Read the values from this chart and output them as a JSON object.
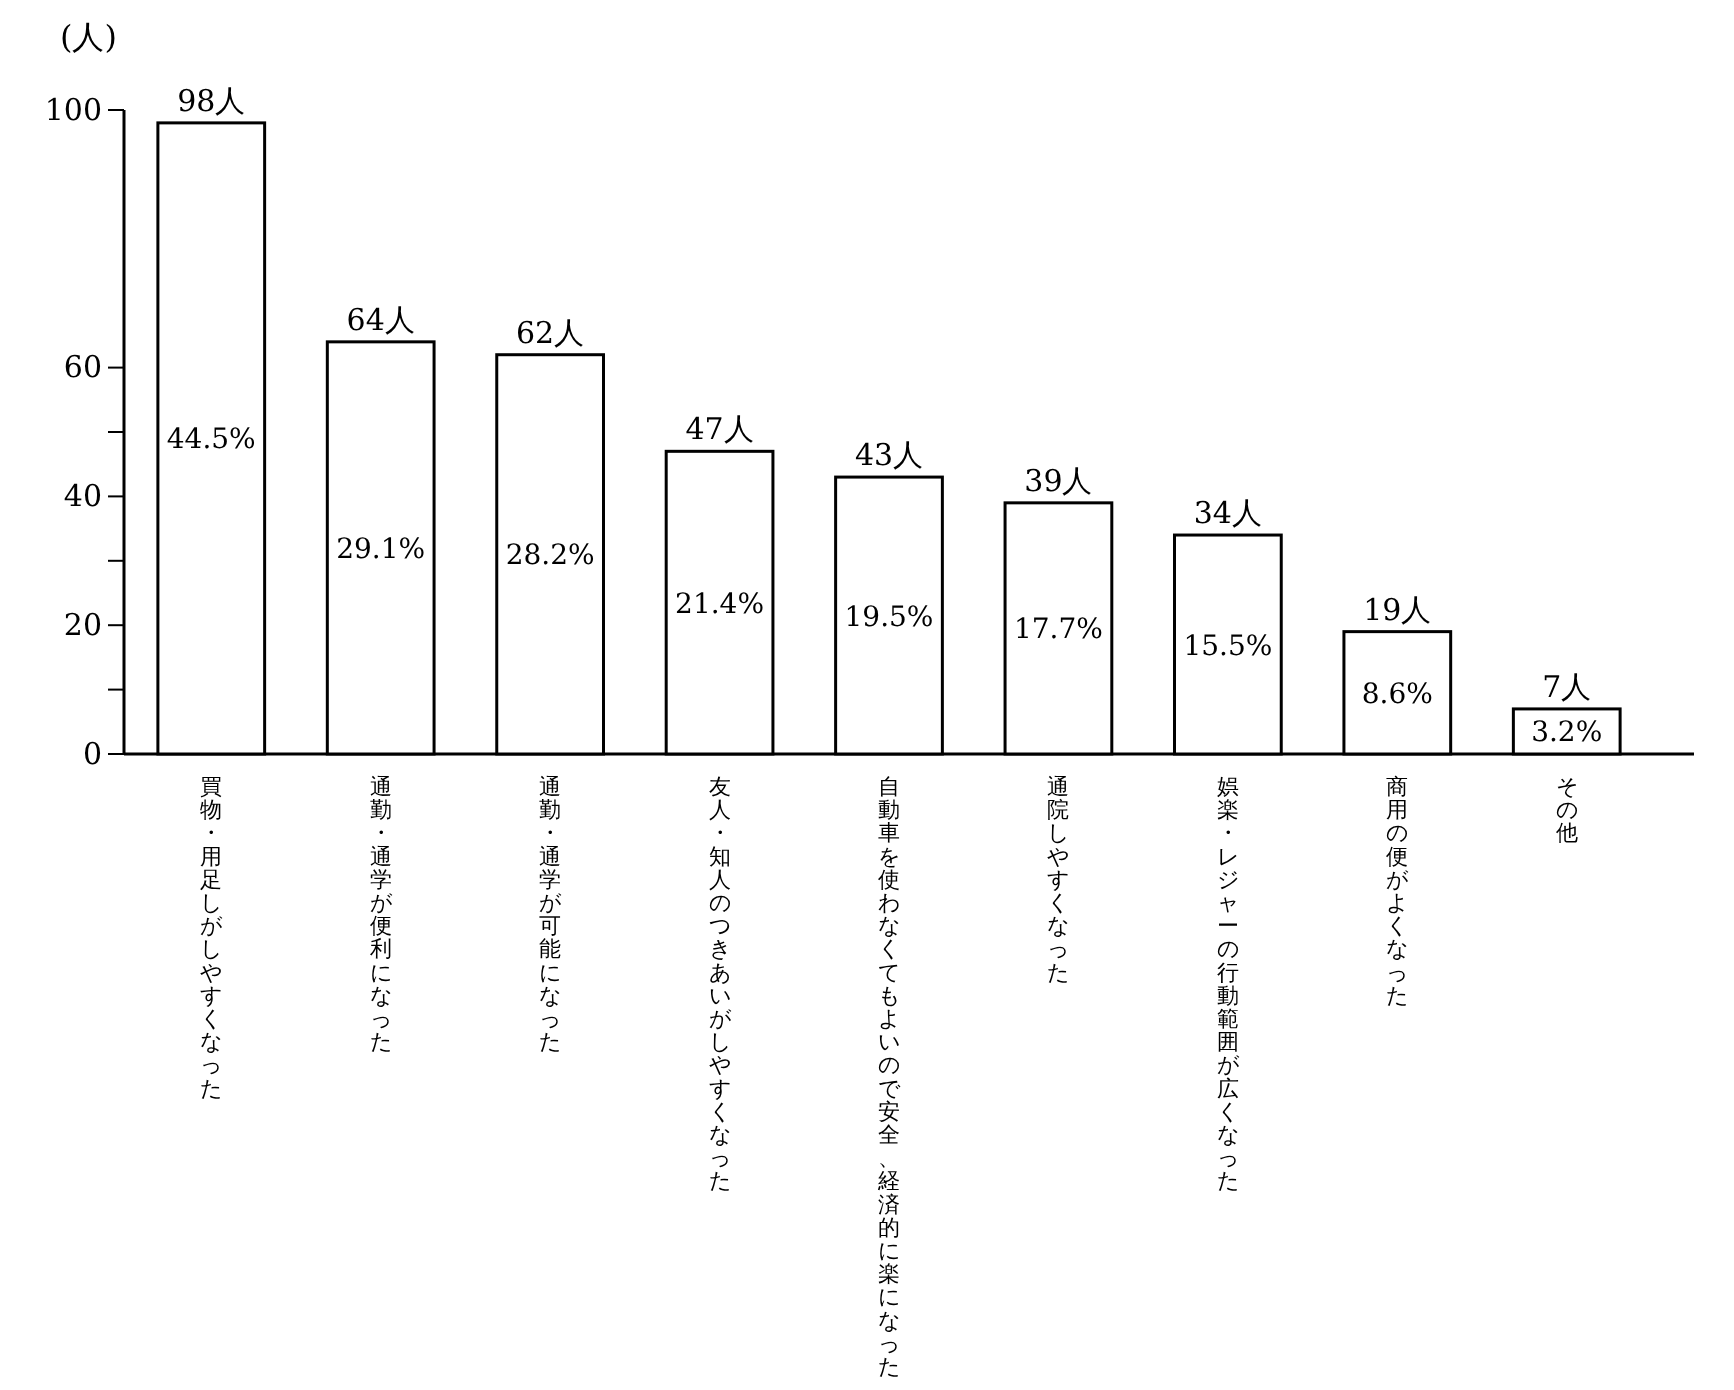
{
  "chart_data": {
    "type": "bar",
    "ylabel": "(人)",
    "categories": [
      "買物・用足しがしやすくなった",
      "通勤・通学が便利になった",
      "通勤・通学が可能になった",
      "友人・知人のつきあいがしやすくなった",
      "自動車を使わなくてもよいので安全、経済的に楽になった",
      "通院しやすくなった",
      "娯楽・レジャーの行動範囲が広くなった",
      "商用の便がよくなった",
      "その他"
    ],
    "values": [
      98,
      64,
      62,
      47,
      43,
      39,
      34,
      19,
      7
    ],
    "value_labels": [
      "98人",
      "64人",
      "62人",
      "47人",
      "43人",
      "39人",
      "34人",
      "19人",
      "7人"
    ],
    "color": "#ffffff",
    "ylim": [
      0,
      100
    ],
    "yticks": [
      0,
      {
        "value": 10,
        "label": null
      },
      20,
      {
        "value": 30,
        "label": null
      },
      40,
      {
        "value": 50,
        "label": null
      },
      60,
      100
    ],
    "grid": false,
    "legend": false,
    "annotations": [
      "44.5%",
      "29.1%",
      "28.2%",
      "21.4%",
      "19.5%",
      "17.7%",
      "15.5%",
      "8.6%",
      "3.2%"
    ]
  }
}
